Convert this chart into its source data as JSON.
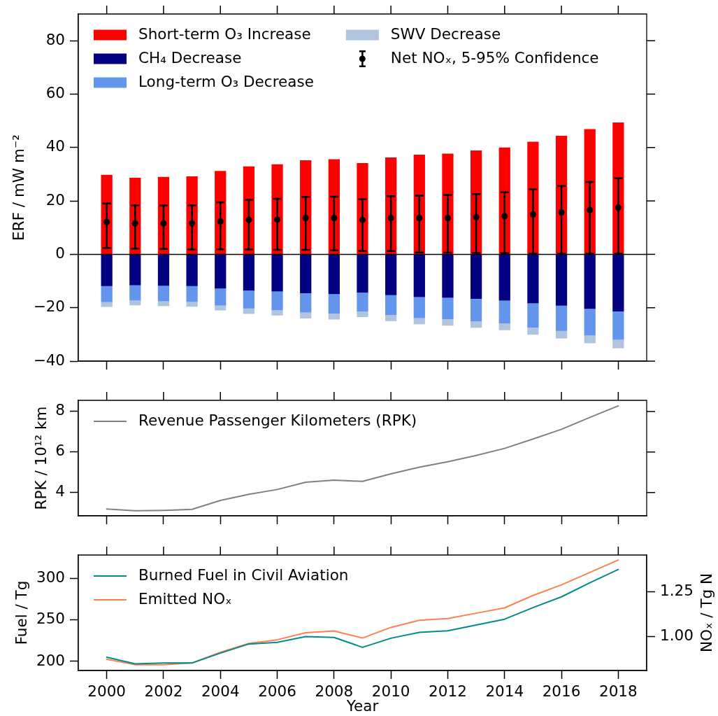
{
  "chart_data": [
    {
      "type": "bar",
      "stacked": true,
      "ylabel": "ERF / mW m⁻²",
      "x": [
        2000,
        2001,
        2002,
        2003,
        2004,
        2005,
        2006,
        2007,
        2008,
        2009,
        2010,
        2011,
        2012,
        2013,
        2014,
        2015,
        2016,
        2017,
        2018
      ],
      "xlim": [
        1999,
        2019
      ],
      "xticks": [
        2000,
        2002,
        2004,
        2006,
        2008,
        2010,
        2012,
        2014,
        2016,
        2018
      ],
      "ylim": [
        -40,
        90
      ],
      "yticks": [
        -40,
        -20,
        0,
        20,
        40,
        60,
        80
      ],
      "tick_labels": "y",
      "legend": "top left",
      "marker": "circle",
      "ref_lines": [
        {
          "axis": "y",
          "value": 0,
          "color": "#000000"
        }
      ],
      "series": [
        {
          "name": "Short-term O₃ Increase",
          "color": "#ff0000",
          "values": [
            29.8,
            28.7,
            29.0,
            29.2,
            31.2,
            32.9,
            33.7,
            35.2,
            35.6,
            34.2,
            36.3,
            37.3,
            37.7,
            38.9,
            40.0,
            42.2,
            44.4,
            46.9,
            49.4
          ]
        },
        {
          "name": "CH₄ Decrease",
          "color": "#000080",
          "values": [
            -11.9,
            -11.6,
            -11.8,
            -11.9,
            -12.8,
            -13.6,
            -13.9,
            -14.6,
            -14.9,
            -14.3,
            -15.3,
            -16.0,
            -16.3,
            -16.7,
            -17.3,
            -18.4,
            -19.2,
            -20.4,
            -21.4
          ]
        },
        {
          "name": "Long-term O₃ Decrease",
          "color": "#6495ed",
          "values": [
            -6.0,
            -5.7,
            -5.8,
            -5.9,
            -6.4,
            -6.7,
            -7.0,
            -7.2,
            -7.3,
            -7.1,
            -7.4,
            -7.9,
            -8.0,
            -8.4,
            -8.6,
            -9.1,
            -9.5,
            -10.0,
            -10.6
          ]
        },
        {
          "name": "SWV Decrease",
          "color": "#b0c4de",
          "values": [
            -1.8,
            -1.8,
            -1.8,
            -1.8,
            -1.8,
            -2.0,
            -2.0,
            -2.2,
            -2.2,
            -2.1,
            -2.3,
            -2.3,
            -2.4,
            -2.4,
            -2.5,
            -2.6,
            -2.8,
            -2.9,
            -3.2
          ]
        },
        {
          "name": "Net NOₓ, 5-95% Confidence",
          "type": "scatter",
          "color": "#000000",
          "values": [
            12.1,
            11.6,
            11.6,
            11.6,
            12.3,
            12.9,
            13.0,
            13.6,
            13.6,
            12.9,
            13.6,
            13.6,
            13.6,
            13.9,
            14.3,
            14.9,
            15.7,
            16.6,
            17.5
          ],
          "errors": [
            [
              2.4,
              19.1
            ],
            [
              2.1,
              18.3
            ],
            [
              2.0,
              18.3
            ],
            [
              1.8,
              18.3
            ],
            [
              1.9,
              19.5
            ],
            [
              1.8,
              20.4
            ],
            [
              1.7,
              20.8
            ],
            [
              1.7,
              21.5
            ],
            [
              1.5,
              21.6
            ],
            [
              1.3,
              20.7
            ],
            [
              1.2,
              21.8
            ],
            [
              0.7,
              22.0
            ],
            [
              0.6,
              22.2
            ],
            [
              0.5,
              22.6
            ],
            [
              0.4,
              23.2
            ],
            [
              0.3,
              24.4
            ],
            [
              0.3,
              25.6
            ],
            [
              0.3,
              27.1
            ],
            [
              0.3,
              28.5
            ]
          ]
        }
      ]
    },
    {
      "type": "line",
      "ylabel": "RPK / 10¹² km",
      "x": [
        2000,
        2001,
        2002,
        2003,
        2004,
        2005,
        2006,
        2007,
        2008,
        2009,
        2010,
        2011,
        2012,
        2013,
        2014,
        2015,
        2016,
        2017,
        2018
      ],
      "xlim": [
        1999,
        2019
      ],
      "xticks": [
        2000,
        2002,
        2004,
        2006,
        2008,
        2010,
        2012,
        2014,
        2016,
        2018
      ],
      "ylim": [
        2.85,
        8.55
      ],
      "yticks": [
        4,
        6,
        8
      ],
      "tick_labels": "y",
      "legend": "top left",
      "series": [
        {
          "name": "Revenue Passenger Kilometers (RPK)",
          "color": "#808080",
          "values": [
            3.19,
            3.1,
            3.12,
            3.17,
            3.61,
            3.91,
            4.15,
            4.51,
            4.61,
            4.55,
            4.92,
            5.25,
            5.52,
            5.83,
            6.18,
            6.64,
            7.12,
            7.71,
            8.28
          ]
        }
      ]
    },
    {
      "type": "line",
      "xlabel": "Year",
      "ylabel": "Fuel / Tg",
      "y2label": "NOₓ / Tg N",
      "x": [
        2000,
        2001,
        2002,
        2003,
        2004,
        2005,
        2006,
        2007,
        2008,
        2009,
        2010,
        2011,
        2012,
        2013,
        2014,
        2015,
        2016,
        2017,
        2018
      ],
      "xlim": [
        1999,
        2019
      ],
      "xticks": [
        2000,
        2002,
        2004,
        2006,
        2008,
        2010,
        2012,
        2014,
        2016,
        2018
      ],
      "ylim": [
        189,
        328.5
      ],
      "yticks": [
        200,
        250,
        300
      ],
      "y2lim": [
        0.807,
        1.458
      ],
      "y2ticks": [
        {
          "value": 1,
          "label": "1.00"
        },
        1.25
      ],
      "legend": "top left",
      "series": [
        {
          "name": "Burned Fuel in Civil Aviation",
          "color": "#008b8b",
          "values": [
            205,
            197,
            198,
            198,
            210,
            221,
            223,
            230,
            229,
            217,
            228,
            235,
            237,
            244,
            251,
            265,
            278,
            295,
            311
          ]
        },
        {
          "name": "Emitted NOₓ",
          "color": "#ff7f50",
          "axis": "y2",
          "values": [
            0.87,
            0.84,
            0.84,
            0.85,
            0.91,
            0.96,
            0.98,
            1.02,
            1.03,
            0.99,
            1.05,
            1.09,
            1.1,
            1.13,
            1.16,
            1.23,
            1.29,
            1.36,
            1.43
          ]
        }
      ]
    }
  ]
}
